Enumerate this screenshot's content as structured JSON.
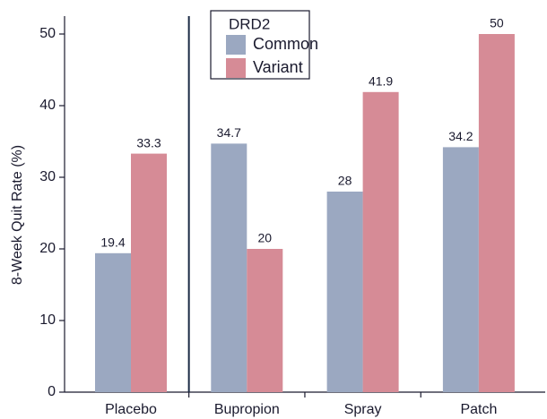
{
  "chart_data": {
    "type": "bar",
    "y_label": "8-Week Quit Rate (%)",
    "categories": [
      "Placebo",
      "Bupropion",
      "Spray",
      "Patch"
    ],
    "series": [
      {
        "name": "Common",
        "color": "#9ba8c1",
        "values": [
          19.4,
          34.7,
          28,
          34.2
        ]
      },
      {
        "name": "Variant",
        "color": "#d68b96",
        "values": [
          33.3,
          20,
          41.9,
          50
        ]
      }
    ],
    "legend_title": "DRD2",
    "legend": "top",
    "ylim": [
      0,
      52.5
    ],
    "yticks": [
      0,
      10,
      20,
      30,
      40,
      50
    ],
    "grid": false
  }
}
